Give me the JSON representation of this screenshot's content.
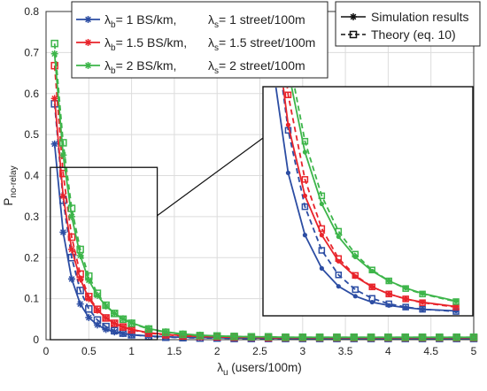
{
  "chart_data": {
    "type": "line",
    "xlabel": {
      "symbol": "λ",
      "sub": "u",
      "text": " (users/100m)"
    },
    "ylabel": {
      "main": "P",
      "sub": "no-relay"
    },
    "xlim": [
      0,
      5
    ],
    "ylim": [
      0,
      0.8
    ],
    "xticks": [
      "0",
      "0.5",
      "1",
      "1.5",
      "2",
      "2.5",
      "3",
      "3.5",
      "4",
      "4.5",
      "5"
    ],
    "yticks": [
      "0",
      "0.1",
      "0.2",
      "0.3",
      "0.4",
      "0.5",
      "0.6",
      "0.7",
      "0.8"
    ],
    "grid": true,
    "x": [
      0.1,
      0.2,
      0.3,
      0.4,
      0.5,
      0.6,
      0.7,
      0.8,
      0.9,
      1.0,
      1.2,
      1.4,
      1.6,
      1.8,
      2.0,
      2.2,
      2.4,
      2.6,
      2.8,
      3.0,
      3.2,
      3.4,
      3.6,
      3.8,
      4.0,
      4.2,
      4.4,
      4.6,
      4.8,
      5.0
    ],
    "series": [
      {
        "color": "#2c4da3",
        "legend": {
          "lb": "= 1 BS/km,",
          "ls": "= 1 street/100m"
        },
        "simulation": [
          0.477,
          0.262,
          0.148,
          0.087,
          0.054,
          0.036,
          0.025,
          0.019,
          0.015,
          0.012,
          0.009,
          0.007,
          0.006,
          0.005,
          0.005,
          0.004,
          0.004,
          0.004,
          0.003,
          0.003,
          0.003,
          0.003,
          0.003,
          0.003,
          0.003,
          0.003,
          0.003,
          0.003,
          0.003,
          0.003
        ],
        "theory": [
          0.575,
          0.34,
          0.2,
          0.12,
          0.075,
          0.048,
          0.032,
          0.022,
          0.016,
          0.012,
          0.008,
          0.006,
          0.005,
          0.004,
          0.004,
          0.003,
          0.003,
          0.003,
          0.003,
          0.003,
          0.003,
          0.003,
          0.003,
          0.003,
          0.003,
          0.003,
          0.003,
          0.003,
          0.003,
          0.003
        ]
      },
      {
        "color": "#e8242b",
        "legend": {
          "lb": "= 1.5 BS/km,",
          "ls": "= 1.5 street/100m"
        },
        "simulation": [
          0.588,
          0.35,
          0.22,
          0.148,
          0.1,
          0.072,
          0.053,
          0.04,
          0.031,
          0.025,
          0.017,
          0.013,
          0.01,
          0.008,
          0.007,
          0.006,
          0.006,
          0.005,
          0.005,
          0.005,
          0.005,
          0.005,
          0.005,
          0.005,
          0.005,
          0.005,
          0.005,
          0.005,
          0.005,
          0.005
        ],
        "theory": [
          0.668,
          0.405,
          0.25,
          0.16,
          0.105,
          0.074,
          0.053,
          0.04,
          0.031,
          0.024,
          0.016,
          0.012,
          0.009,
          0.008,
          0.007,
          0.006,
          0.006,
          0.005,
          0.005,
          0.005,
          0.005,
          0.005,
          0.005,
          0.005,
          0.005,
          0.005,
          0.005,
          0.005,
          0.005,
          0.005
        ]
      },
      {
        "color": "#3db54a",
        "legend": {
          "lb": "= 2 BS/km,",
          "ls": "= 2 street/100m"
        },
        "simulation": [
          0.697,
          0.45,
          0.3,
          0.205,
          0.145,
          0.108,
          0.082,
          0.064,
          0.051,
          0.041,
          0.027,
          0.019,
          0.014,
          0.011,
          0.009,
          0.008,
          0.007,
          0.007,
          0.006,
          0.006,
          0.006,
          0.006,
          0.006,
          0.006,
          0.006,
          0.006,
          0.006,
          0.006,
          0.006,
          0.006
        ],
        "theory": [
          0.722,
          0.48,
          0.32,
          0.22,
          0.155,
          0.113,
          0.084,
          0.064,
          0.05,
          0.04,
          0.026,
          0.018,
          0.013,
          0.01,
          0.009,
          0.008,
          0.007,
          0.007,
          0.006,
          0.006,
          0.006,
          0.006,
          0.006,
          0.006,
          0.006,
          0.006,
          0.006,
          0.006,
          0.006,
          0.006
        ]
      }
    ],
    "legend_sim": "Simulation results",
    "legend_theory": "Theory (eq. 10)",
    "legend_symbols": {
      "lambda": "λ",
      "b": "b",
      "s": "s"
    },
    "inset": {
      "xlim": [
        0.05,
        1.3
      ],
      "ylim": [
        0,
        0.42
      ]
    }
  }
}
